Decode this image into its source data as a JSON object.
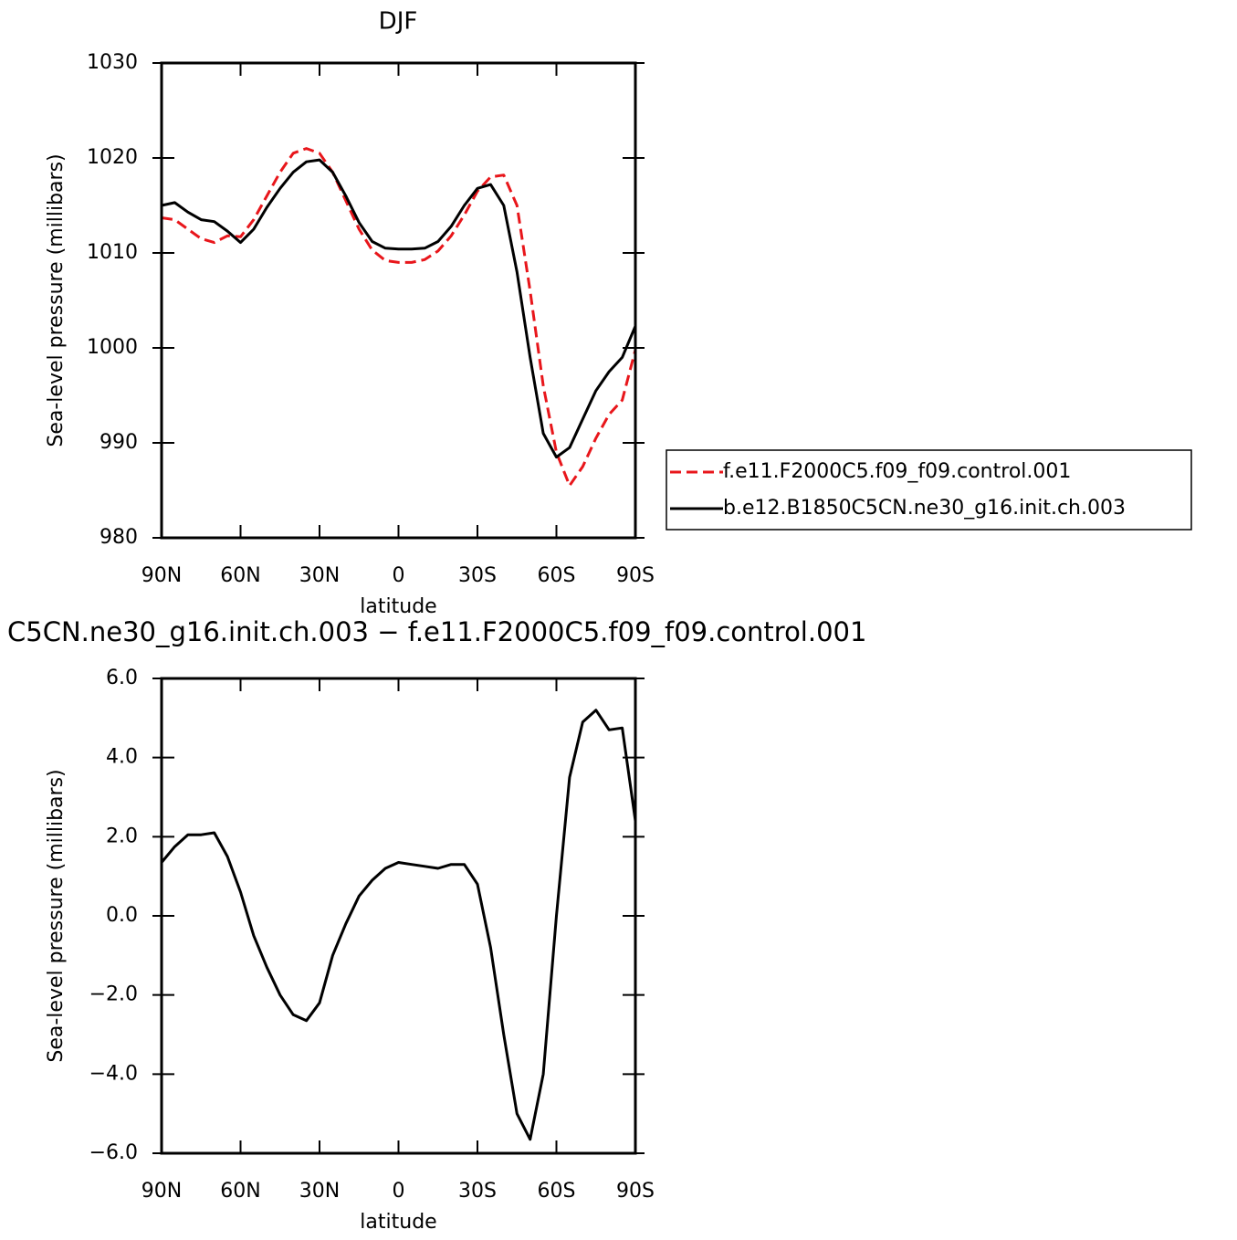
{
  "chart_data": [
    {
      "type": "line",
      "title": "DJF",
      "xlabel": "latitude",
      "ylabel": "Sea-level pressure (millibars)",
      "x": [
        90,
        85,
        80,
        75,
        70,
        65,
        60,
        55,
        50,
        45,
        40,
        35,
        30,
        25,
        20,
        15,
        10,
        5,
        0,
        -5,
        -10,
        -15,
        -20,
        -25,
        -30,
        -35,
        -40,
        -45,
        -50,
        -55,
        -60,
        -65,
        -70,
        -75,
        -80,
        -85,
        -90
      ],
      "series": [
        {
          "name": "f.e11.F2000C5.f09_f09.control.001",
          "color": "#e8161b",
          "dashed": true,
          "values": [
            1013.7,
            1013.5,
            1012.5,
            1011.5,
            1011.1,
            1011.8,
            1011.7,
            1013.5,
            1016,
            1018.5,
            1020.5,
            1021.0,
            1020.5,
            1018.5,
            1015.5,
            1012.5,
            1010.3,
            1009.2,
            1009.0,
            1009.0,
            1009.3,
            1010.2,
            1011.8,
            1014,
            1016.5,
            1018.0,
            1018.2,
            1015,
            1006,
            996,
            989,
            985.5,
            987.5,
            990.5,
            993,
            994.5,
            999.8
          ]
        },
        {
          "name": "b.e12.B1850C5CN.ne30_g16.init.ch.003",
          "color": "#000000",
          "dashed": false,
          "values": [
            1015.0,
            1015.3,
            1014.3,
            1013.5,
            1013.3,
            1012.3,
            1011.1,
            1012.5,
            1014.8,
            1016.8,
            1018.5,
            1019.6,
            1019.8,
            1018.5,
            1016,
            1013.2,
            1011.2,
            1010.5,
            1010.4,
            1010.4,
            1010.5,
            1011.2,
            1012.8,
            1015,
            1016.8,
            1017.2,
            1015,
            1008,
            999,
            991,
            988.5,
            989.5,
            992.5,
            995.5,
            997.5,
            999,
            1002.3
          ]
        }
      ],
      "xlim": [
        90,
        -90
      ],
      "xticks": [
        {
          "value": 90,
          "label": "90N"
        },
        {
          "value": 60,
          "label": "60N"
        },
        {
          "value": 30,
          "label": "30N"
        },
        0,
        {
          "value": -30,
          "label": "30S"
        },
        {
          "value": -60,
          "label": "60S"
        },
        {
          "value": -90,
          "label": "90S"
        }
      ],
      "ylim": [
        980,
        1030
      ],
      "yticks": [
        980,
        990,
        1000,
        1010,
        1020,
        1030
      ],
      "legend": "right"
    },
    {
      "type": "line",
      "title": "C5CN.ne30_g16.init.ch.003 − f.e11.F2000C5.f09_f09.control.001",
      "xlabel": "latitude",
      "ylabel": "Sea-level pressure (millibars)",
      "x": [
        90,
        85,
        80,
        75,
        70,
        65,
        60,
        55,
        50,
        45,
        40,
        35,
        30,
        25,
        20,
        15,
        10,
        5,
        0,
        -5,
        -10,
        -15,
        -20,
        -25,
        -30,
        -35,
        -40,
        -45,
        -50,
        -55,
        -60,
        -65,
        -70,
        -75,
        -80,
        -85,
        -90
      ],
      "values": [
        1.35,
        1.75,
        2.05,
        2.05,
        2.1,
        1.5,
        0.6,
        -0.5,
        -1.3,
        -2.0,
        -2.5,
        -2.65,
        -2.2,
        -1.0,
        -0.2,
        0.5,
        0.9,
        1.2,
        1.35,
        1.3,
        1.25,
        1.2,
        1.3,
        1.3,
        0.8,
        -0.8,
        -3.0,
        -5.0,
        -5.65,
        -4.0,
        0.0,
        3.5,
        4.9,
        5.2,
        4.7,
        4.75,
        2.4
      ],
      "color": "#000000",
      "xlim": [
        90,
        -90
      ],
      "xticks": [
        {
          "value": 90,
          "label": "90N"
        },
        {
          "value": 60,
          "label": "60N"
        },
        {
          "value": 30,
          "label": "30N"
        },
        0,
        {
          "value": -30,
          "label": "30S"
        },
        {
          "value": -60,
          "label": "60S"
        },
        {
          "value": -90,
          "label": "90S"
        }
      ],
      "ylim": [
        -6,
        6
      ],
      "yticks": [
        {
          "value": -6,
          "label": "−6.0"
        },
        {
          "value": -4,
          "label": "−4.0"
        },
        {
          "value": -2,
          "label": "−2.0"
        },
        {
          "value": 0,
          "label": "0.0"
        },
        {
          "value": 2,
          "label": "2.0"
        },
        {
          "value": 4,
          "label": "4.0"
        },
        {
          "value": 6,
          "label": "6.0"
        }
      ]
    }
  ]
}
